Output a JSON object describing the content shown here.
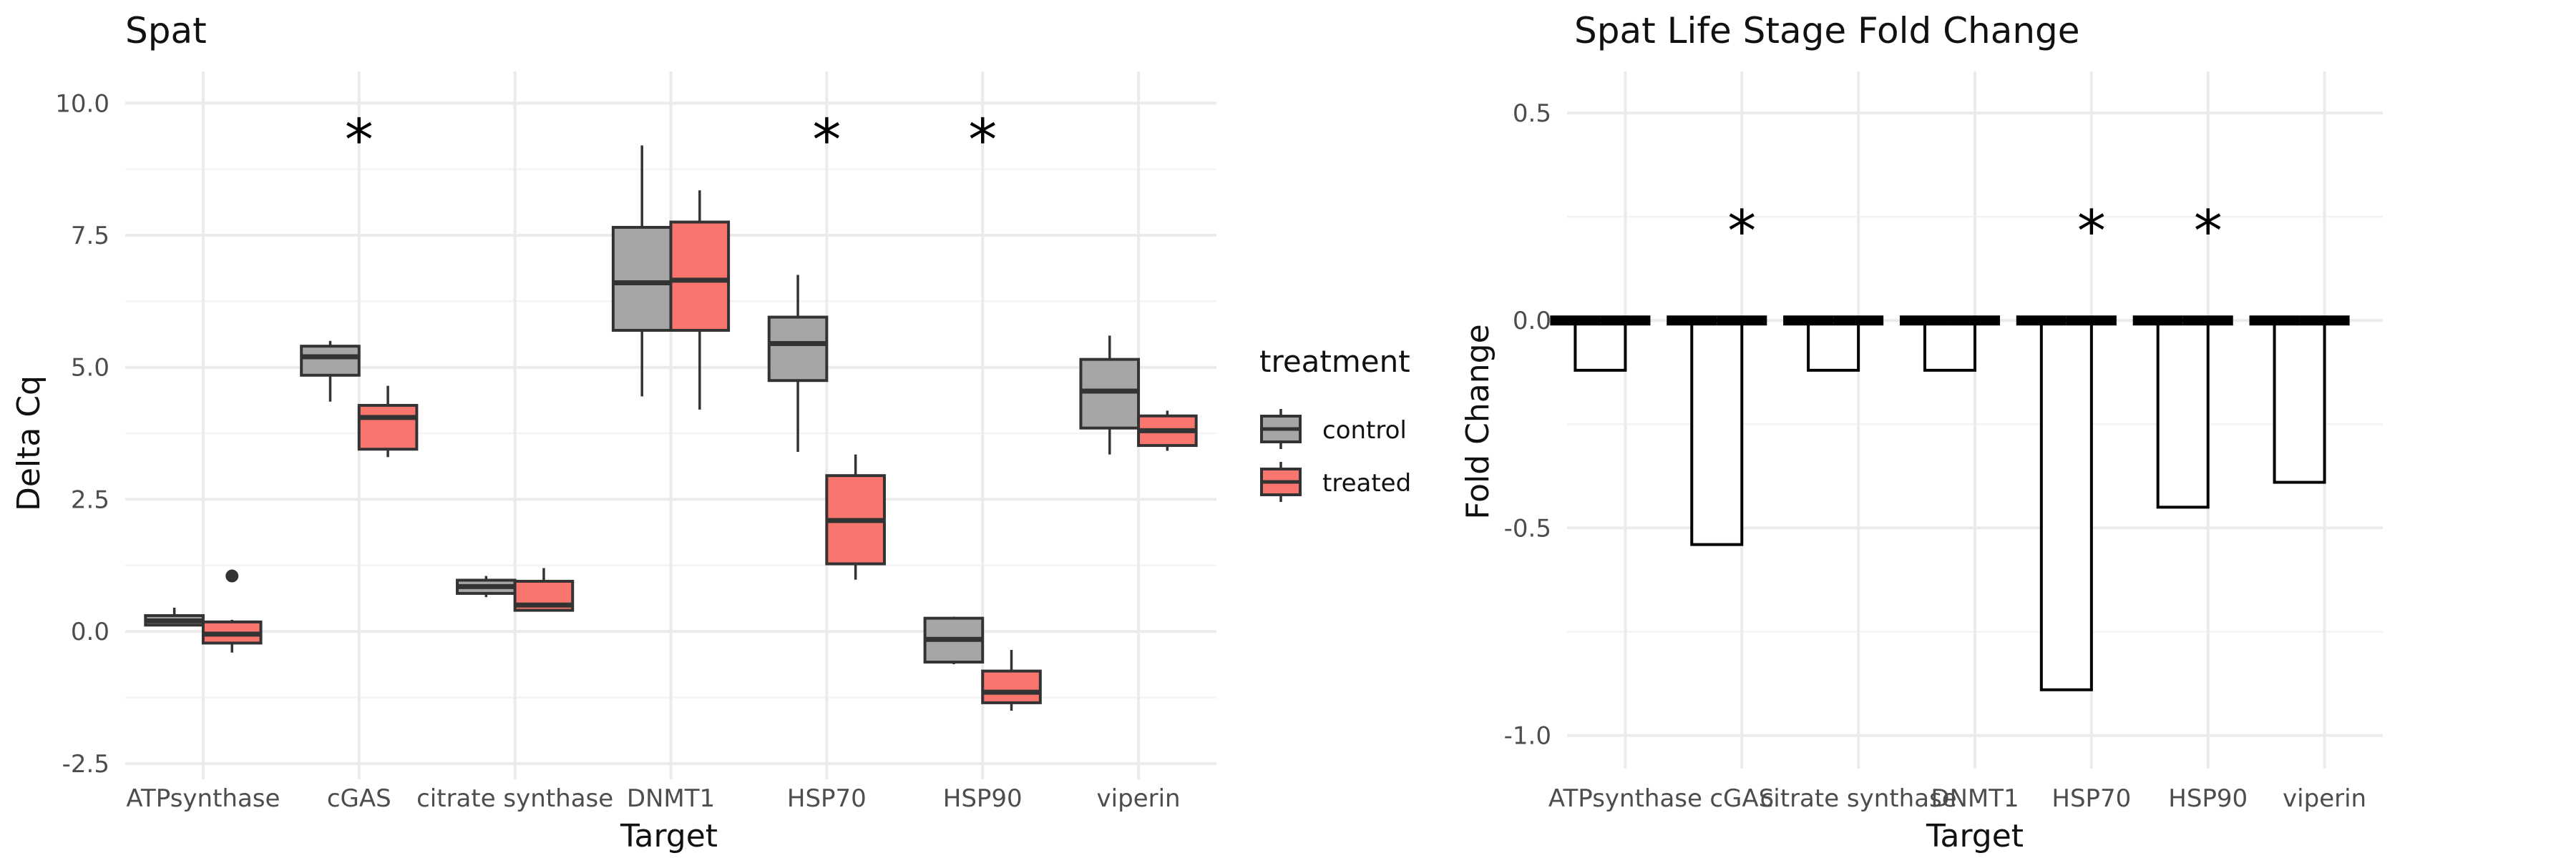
{
  "chart_data": [
    {
      "type": "box",
      "title": "Spat",
      "xlabel": "Target",
      "ylabel": "Delta Cq",
      "categories": [
        "ATPsynthase",
        "cGAS",
        "citrate synthase",
        "DNMT1",
        "HSP70",
        "HSP90",
        "viperin"
      ],
      "ylim": [
        -2.8,
        10.6
      ],
      "yticks": [
        -2.5,
        0.0,
        2.5,
        5.0,
        7.5,
        10.0
      ],
      "ytick_labels": [
        "-2.5",
        "0.0",
        "2.5",
        "5.0",
        "7.5",
        "10.0"
      ],
      "grid": true,
      "legend": {
        "title": "treatment",
        "position": "right"
      },
      "series": [
        {
          "name": "control",
          "color": "#a6a6a6",
          "boxes": [
            {
              "min": 0.1,
              "q1": 0.12,
              "median": 0.2,
              "q3": 0.3,
              "max": 0.45,
              "outliers": []
            },
            {
              "min": 4.35,
              "q1": 4.85,
              "median": 5.2,
              "q3": 5.4,
              "max": 5.5,
              "outliers": []
            },
            {
              "min": 0.65,
              "q1": 0.72,
              "median": 0.85,
              "q3": 0.97,
              "max": 1.05,
              "outliers": []
            },
            {
              "min": 4.45,
              "q1": 5.7,
              "median": 6.6,
              "q3": 7.65,
              "max": 9.2,
              "outliers": []
            },
            {
              "min": 3.4,
              "q1": 4.75,
              "median": 5.45,
              "q3": 5.95,
              "max": 6.75,
              "outliers": []
            },
            {
              "min": -0.62,
              "q1": -0.58,
              "median": -0.15,
              "q3": 0.25,
              "max": 0.28,
              "outliers": []
            },
            {
              "min": 3.35,
              "q1": 3.85,
              "median": 4.55,
              "q3": 5.15,
              "max": 5.6,
              "outliers": []
            }
          ]
        },
        {
          "name": "treated",
          "color": "#f8766d",
          "boxes": [
            {
              "min": -0.4,
              "q1": -0.22,
              "median": -0.05,
              "q3": 0.18,
              "max": 0.22,
              "outliers": [
                1.05
              ]
            },
            {
              "min": 3.3,
              "q1": 3.45,
              "median": 4.05,
              "q3": 4.28,
              "max": 4.65,
              "outliers": []
            },
            {
              "min": 0.38,
              "q1": 0.4,
              "median": 0.5,
              "q3": 0.95,
              "max": 1.2,
              "outliers": []
            },
            {
              "min": 4.2,
              "q1": 5.7,
              "median": 6.65,
              "q3": 7.75,
              "max": 8.35,
              "outliers": []
            },
            {
              "min": 0.98,
              "q1": 1.28,
              "median": 2.1,
              "q3": 2.95,
              "max": 3.35,
              "outliers": []
            },
            {
              "min": -1.5,
              "q1": -1.35,
              "median": -1.15,
              "q3": -0.75,
              "max": -0.35,
              "outliers": []
            },
            {
              "min": 3.42,
              "q1": 3.52,
              "median": 3.8,
              "q3": 4.08,
              "max": 4.18,
              "outliers": []
            }
          ]
        }
      ],
      "annotations": [
        {
          "category": "cGAS",
          "text": "*",
          "y": 9.5
        },
        {
          "category": "HSP70",
          "text": "*",
          "y": 9.5
        },
        {
          "category": "HSP90",
          "text": "*",
          "y": 9.5
        }
      ]
    },
    {
      "type": "bar",
      "title": "Spat Life Stage Fold Change",
      "xlabel": "Target",
      "ylabel": "Fold Change",
      "categories": [
        "ATPsynthase",
        "cGAS",
        "citrate synthase",
        "DNMT1",
        "HSP70",
        "HSP90",
        "viperin"
      ],
      "ylim": [
        -1.08,
        0.6
      ],
      "yticks": [
        -1.0,
        -0.5,
        0.0,
        0.5
      ],
      "ytick_labels": [
        "-1.0",
        "-0.5",
        "0.0",
        "0.5"
      ],
      "grid": true,
      "series": [
        {
          "values": [
            -0.12,
            -0.54,
            -0.12,
            -0.12,
            -0.89,
            -0.45,
            -0.39
          ]
        },
        {
          "values": [
            0,
            0,
            0,
            0,
            0,
            0,
            0
          ]
        }
      ],
      "annotations": [
        {
          "category": "cGAS",
          "text": "*",
          "y": 0.24
        },
        {
          "category": "HSP70",
          "text": "*",
          "y": 0.24
        },
        {
          "category": "HSP90",
          "text": "*",
          "y": 0.24
        }
      ]
    }
  ]
}
